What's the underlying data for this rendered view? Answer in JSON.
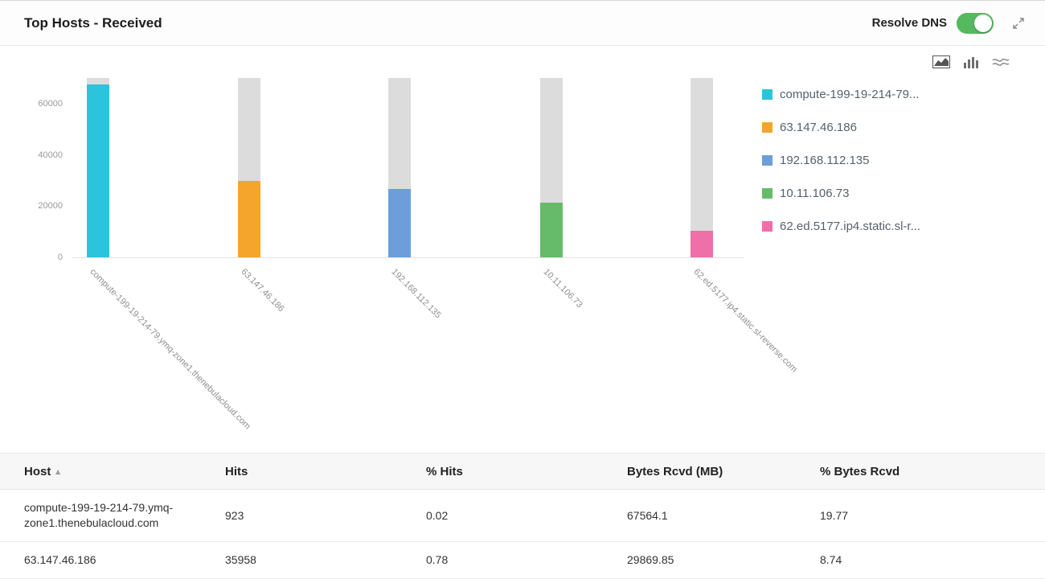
{
  "header": {
    "title": "Top Hosts - Received",
    "resolve_dns_label": "Resolve DNS",
    "resolve_dns_state": "on"
  },
  "chart_toolbar": {
    "icons": [
      "area-chart",
      "bar-chart",
      "stream-chart"
    ],
    "selected": "area-chart"
  },
  "chart_data": {
    "type": "bar",
    "title": "Top Hosts - Received",
    "categories": [
      "compute-199-19-214-79.ymq-zone1.thenebulacloud.com",
      "63.147.46.186",
      "192.168.112.135",
      "10.11.106.73",
      "62.ed.5177.ip4.static.sl-reverse.com"
    ],
    "series": [
      {
        "name": "Bytes Rcvd (MB)",
        "values": [
          67564.1,
          29869.85,
          26700,
          21300,
          10400
        ]
      }
    ],
    "stack_total": 70000,
    "ylim": [
      0,
      70000
    ],
    "yticks": [
      0,
      20000,
      40000,
      60000
    ],
    "xlabel": "",
    "ylabel": "",
    "grid": false,
    "legend_position": "right",
    "bar_colors": [
      "#2cc4dd",
      "#f5a42c",
      "#6d9edb",
      "#66bb6a",
      "#ef6fa8"
    ],
    "track_color": "#dcdcdc",
    "bar_centers_pct": [
      3.8,
      26.3,
      48.7,
      71.4,
      93.8
    ]
  },
  "legend": {
    "items": [
      {
        "label": "compute-199-19-214-79...",
        "color": "#2cc4dd"
      },
      {
        "label": "63.147.46.186",
        "color": "#f5a42c"
      },
      {
        "label": "192.168.112.135",
        "color": "#6d9edb"
      },
      {
        "label": "10.11.106.73",
        "color": "#66bb6a"
      },
      {
        "label": "62.ed.5177.ip4.static.sl-r...",
        "color": "#ef6fa8"
      }
    ]
  },
  "table": {
    "columns": [
      {
        "key": "host",
        "label": "Host",
        "sorted": true
      },
      {
        "key": "hits",
        "label": "Hits"
      },
      {
        "key": "pct_hits",
        "label": "% Hits"
      },
      {
        "key": "bytes_rcvd",
        "label": "Bytes Rcvd (MB)"
      },
      {
        "key": "pct_bytes",
        "label": "% Bytes Rcvd"
      }
    ],
    "rows": [
      {
        "host": "compute-199-19-214-79.ymq-zone1.thenebulacloud.com",
        "hits": "923",
        "pct_hits": "0.02",
        "bytes_rcvd": "67564.1",
        "pct_bytes": "19.77"
      },
      {
        "host": "63.147.46.186",
        "hits": "35958",
        "pct_hits": "0.78",
        "bytes_rcvd": "29869.85",
        "pct_bytes": "8.74"
      }
    ]
  }
}
